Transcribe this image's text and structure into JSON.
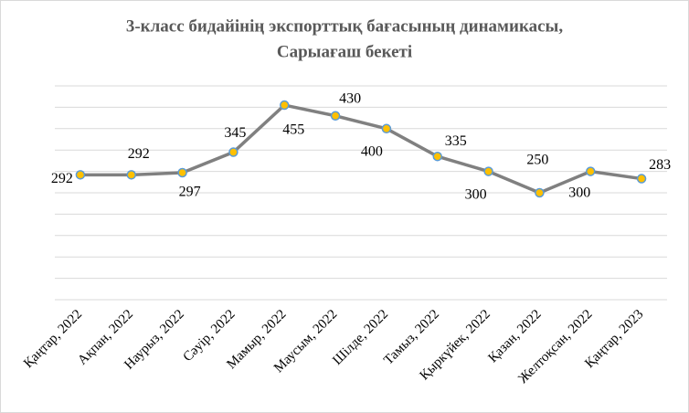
{
  "chart_data": {
    "type": "line",
    "title": [
      "3-класс бидайінің  экспорттық бағасының динамикасы,",
      "Сарыағаш бекеті"
    ],
    "categories": [
      "Қаңтар, 2022",
      "Ақпан, 2022",
      "Наурыз, 2022",
      "Сәуір, 2022",
      "Мамыр, 2022",
      "Маусым, 2022",
      "Шілде, 2022",
      "Тамыз, 2022",
      "Қыркүйек, 2022",
      "Қазан, 2022",
      "Желтоқсан, 2022",
      "Қаңтар, 2023"
    ],
    "series": [
      {
        "name": "Баға",
        "color": "#808080",
        "marker_color": "#ffc000",
        "marker_edge": "#5b9bd5",
        "values": [
          292,
          292,
          297,
          345,
          455,
          430,
          400,
          335,
          300,
          250,
          300,
          283
        ]
      }
    ],
    "ylim": [
      0,
      500
    ],
    "yticks": [
      0,
      50,
      100,
      150,
      200,
      250,
      300,
      350,
      400,
      450,
      500
    ],
    "grid": true,
    "show_ytick_labels": false,
    "show_legend": false
  }
}
